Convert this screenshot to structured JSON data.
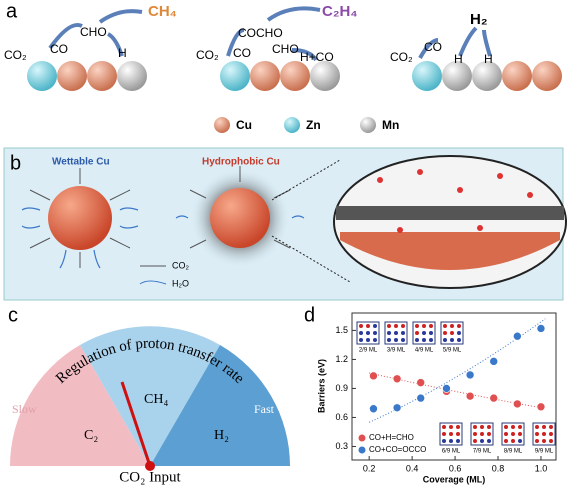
{
  "panel_a": {
    "label": "a",
    "group1": {
      "reactant": "CO₂",
      "intermediates": [
        "CO",
        "CHO",
        "H"
      ],
      "product": "CH₄"
    },
    "group2": {
      "reactant": "CO₂",
      "intermediates": [
        "CO",
        "COCHO",
        "CHO",
        "H+CO"
      ],
      "product": "C₂H₄"
    },
    "group3": {
      "reactant": "CO₂",
      "intermediates": [
        "CO",
        "H",
        "H"
      ],
      "product": "H₂"
    },
    "legend": [
      "Cu",
      "Zn",
      "Mn"
    ]
  },
  "panel_b": {
    "label": "b",
    "left_title": "Wettable Cu",
    "right_title": "Hydrophobic Cu",
    "legend": [
      "CO₂",
      "H₂O"
    ]
  },
  "panel_c": {
    "label": "c",
    "title": "Regulation of proton transfer rate",
    "slow": "Slow",
    "fast": "Fast",
    "regions": [
      "C₂",
      "CH₄",
      "H₂"
    ],
    "input": "CO₂ Input"
  },
  "chart_data": {
    "type": "scatter",
    "label": "d",
    "xlabel": "Coverage (ML)",
    "ylabel": "Barriers (eV)",
    "xlim": [
      0.12,
      1.07
    ],
    "ylim": [
      0.16,
      1.68
    ],
    "xticks": [
      0.2,
      0.4,
      0.6,
      0.8,
      {
        "value": 1,
        "label": "1.0"
      }
    ],
    "yticks": [
      0.3,
      0.6,
      0.9,
      1.2,
      1.5
    ],
    "insets": [
      "2/9 ML",
      "3/9 ML",
      "4/9 ML",
      "5/9 ML",
      "6/9 ML",
      "7/9 ML",
      "8/9 ML",
      "9/9 ML"
    ],
    "series": [
      {
        "name": "CO+H=CHO",
        "color": "#e05050",
        "x": [
          0.22,
          0.33,
          0.44,
          0.56,
          0.67,
          0.78,
          0.89,
          1.0
        ],
        "values": [
          1.03,
          1.0,
          0.96,
          0.87,
          0.82,
          0.8,
          0.74,
          0.71
        ]
      },
      {
        "name": "CO+CO=OCCO",
        "color": "#3a78c9",
        "x": [
          0.22,
          0.33,
          0.44,
          0.56,
          0.67,
          0.78,
          0.89,
          1.0
        ],
        "values": [
          0.69,
          0.7,
          0.8,
          0.9,
          1.04,
          1.18,
          1.44,
          1.52
        ]
      }
    ]
  }
}
